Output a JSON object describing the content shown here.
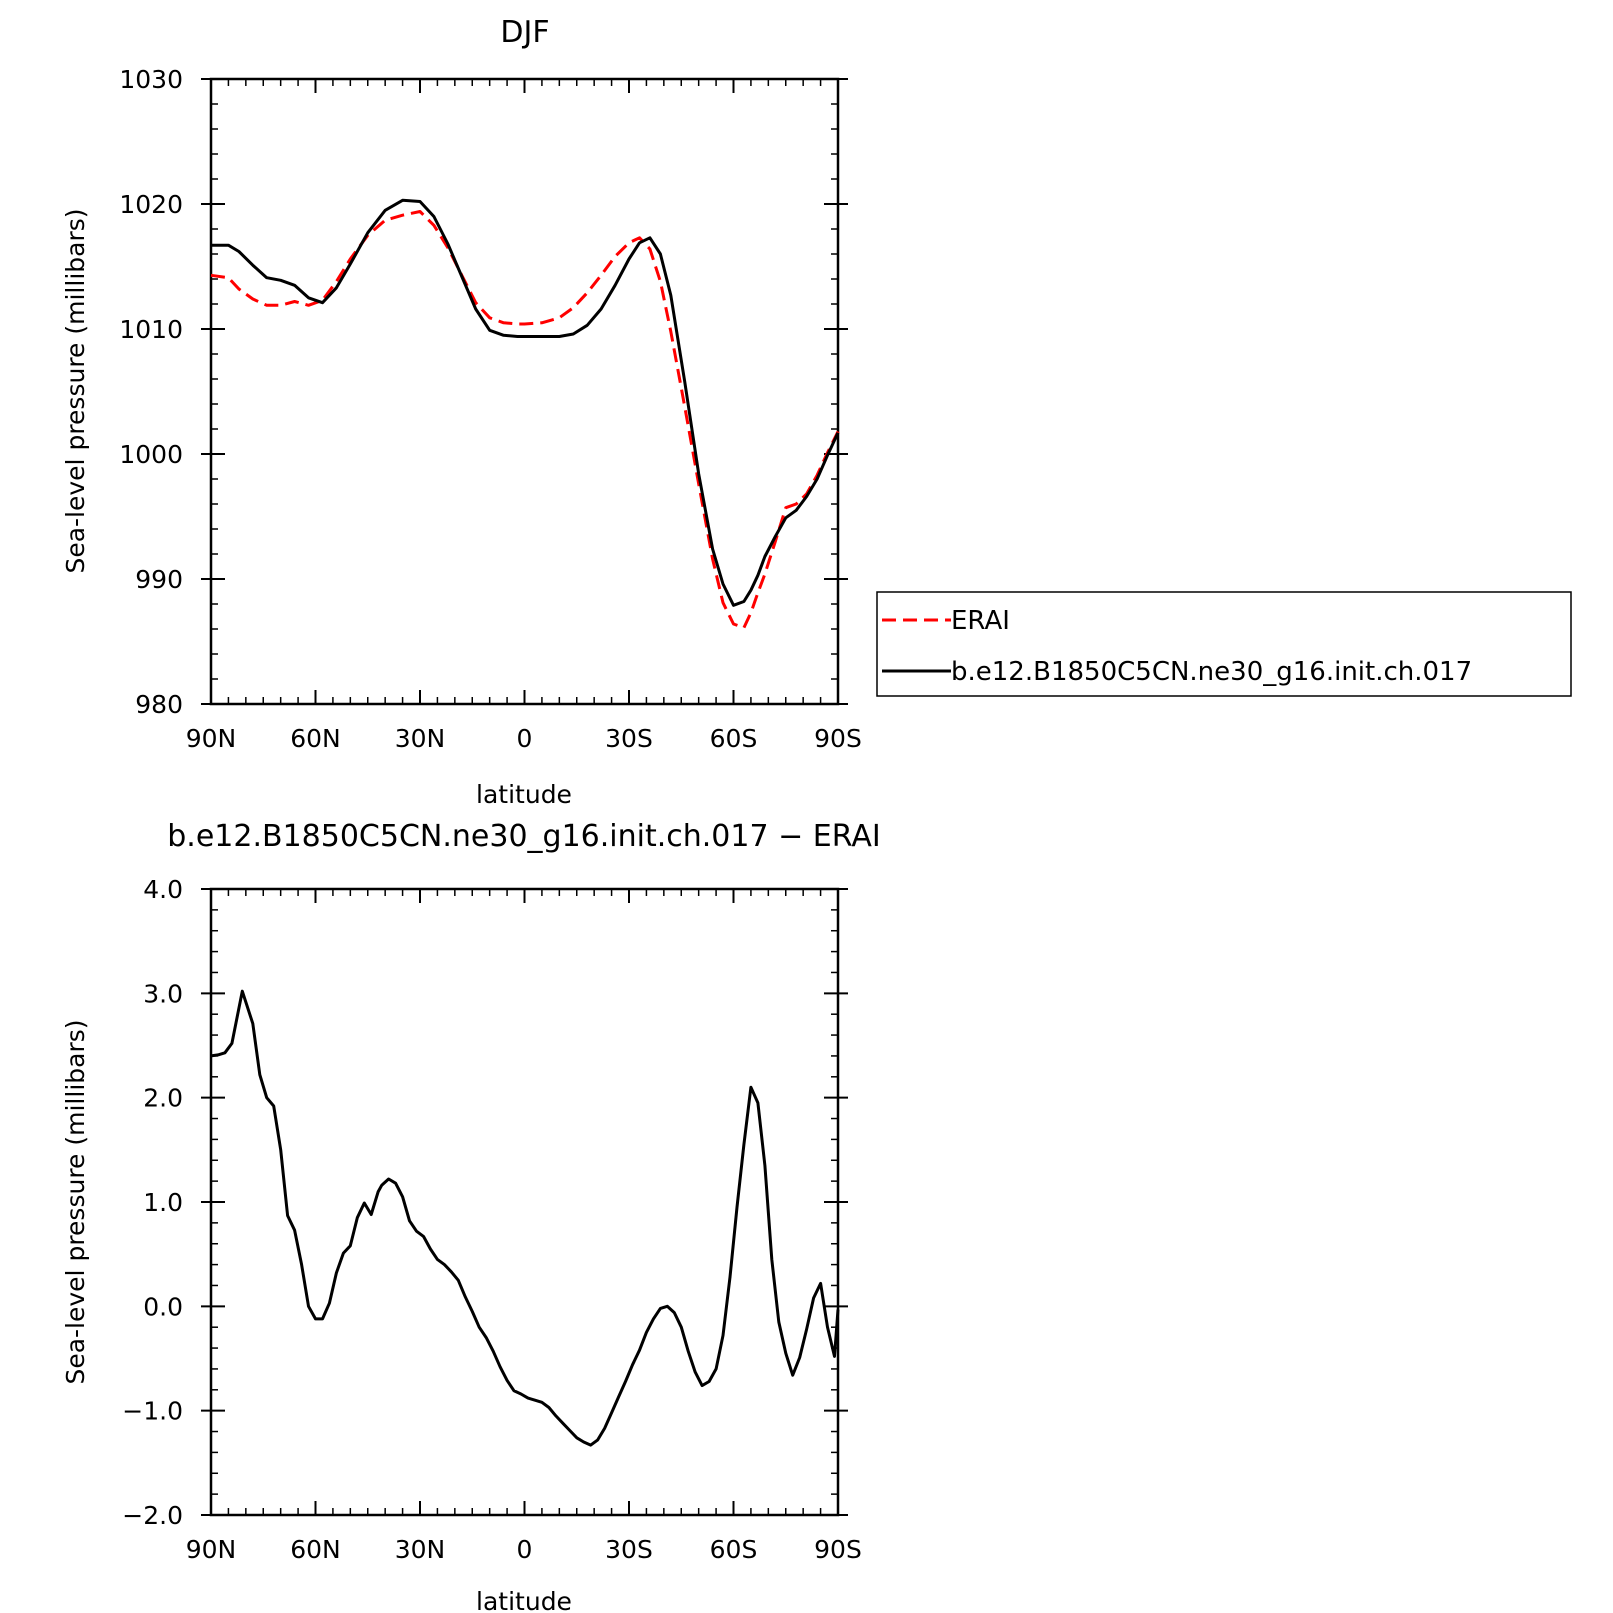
{
  "chart_data": [
    {
      "type": "line",
      "title": "DJF",
      "xlabel": "latitude",
      "ylabel": "Sea-level pressure (millibars)",
      "xlim": [
        90,
        -90
      ],
      "ylim": [
        980,
        1030
      ],
      "xticks": [
        90,
        60,
        30,
        0,
        -30,
        -60,
        -90
      ],
      "xtick_labels": [
        "90N",
        "60N",
        "30N",
        "0",
        "30S",
        "60S",
        "90S"
      ],
      "yticks": [
        980,
        990,
        1000,
        1010,
        1020,
        1030
      ],
      "ytick_labels": [
        "980",
        "990",
        "1000",
        "1010",
        "1020",
        "1030"
      ],
      "legend_position": "right",
      "series": [
        {
          "name": "ERAI",
          "color": "#ff0000",
          "style": "dashed",
          "x": [
            90,
            85,
            82,
            78,
            74,
            70,
            66,
            62,
            58,
            54,
            50,
            45,
            40,
            35,
            30,
            26,
            22,
            18,
            14,
            10,
            6,
            2,
            0,
            -5,
            -10,
            -14,
            -18,
            -22,
            -26,
            -30,
            -33,
            -36,
            -39,
            -42,
            -46,
            -50,
            -54,
            -57,
            -60,
            -63,
            -65,
            -67,
            -69,
            -72,
            -75,
            -78,
            -81,
            -84,
            -87,
            -90
          ],
          "y": [
            1014.3,
            1014.1,
            1013.2,
            1012.4,
            1011.9,
            1011.9,
            1012.2,
            1011.9,
            1012.3,
            1013.8,
            1015.6,
            1017.5,
            1018.7,
            1019.1,
            1019.4,
            1018.3,
            1016.5,
            1014.3,
            1012.1,
            1010.9,
            1010.5,
            1010.4,
            1010.4,
            1010.5,
            1010.9,
            1011.7,
            1012.9,
            1014.3,
            1015.8,
            1016.9,
            1017.3,
            1016.4,
            1013.8,
            1009.8,
            1003.8,
            997.6,
            991.6,
            988.1,
            986.4,
            986.1,
            987.3,
            988.9,
            990.4,
            993.0,
            995.7,
            996.0,
            996.8,
            998.3,
            1000.1,
            1001.8
          ]
        },
        {
          "name": "b.e12.B1850C5CN.ne30_g16.init.ch.017",
          "color": "#000000",
          "style": "solid",
          "x": [
            90,
            85,
            82,
            78,
            74,
            70,
            66,
            62,
            58,
            54,
            50,
            45,
            40,
            35,
            30,
            26,
            22,
            18,
            14,
            10,
            6,
            2,
            0,
            -5,
            -10,
            -14,
            -18,
            -22,
            -26,
            -30,
            -33,
            -36,
            -39,
            -42,
            -46,
            -50,
            -54,
            -57,
            -60,
            -63,
            -65,
            -67,
            -69,
            -72,
            -75,
            -78,
            -81,
            -84,
            -87,
            -90
          ],
          "y": [
            1016.7,
            1016.7,
            1016.2,
            1015.1,
            1014.1,
            1013.9,
            1013.5,
            1012.5,
            1012.1,
            1013.3,
            1015.2,
            1017.7,
            1019.5,
            1020.3,
            1020.2,
            1019.0,
            1016.8,
            1014.2,
            1011.6,
            1009.9,
            1009.5,
            1009.4,
            1009.4,
            1009.4,
            1009.4,
            1009.6,
            1010.3,
            1011.6,
            1013.5,
            1015.6,
            1016.9,
            1017.3,
            1016.0,
            1012.7,
            1005.8,
            998.4,
            992.4,
            989.6,
            987.9,
            988.2,
            989.1,
            990.3,
            991.8,
            993.4,
            994.9,
            995.5,
            996.6,
            998.0,
            999.9,
            1001.7
          ]
        }
      ]
    },
    {
      "type": "line",
      "title": "b.e12.B1850C5CN.ne30_g16.init.ch.017 − ERAI",
      "xlabel": "latitude",
      "ylabel": "Sea-level pressure (millibars)",
      "xlim": [
        90,
        -90
      ],
      "ylim": [
        -2.0,
        4.0
      ],
      "xticks": [
        90,
        60,
        30,
        0,
        -30,
        -60,
        -90
      ],
      "xtick_labels": [
        "90N",
        "60N",
        "30N",
        "0",
        "30S",
        "60S",
        "90S"
      ],
      "yticks": [
        -2.0,
        -1.0,
        0.0,
        1.0,
        2.0,
        3.0,
        4.0
      ],
      "ytick_labels": [
        "−2.0",
        "−1.0",
        "0.0",
        "1.0",
        "2.0",
        "3.0",
        "4.0"
      ],
      "series": [
        {
          "color": "#000000",
          "style": "solid",
          "x": [
            90,
            88,
            86,
            84,
            81,
            78,
            76,
            74,
            72,
            70,
            68,
            66,
            64,
            62,
            60,
            58,
            56,
            54,
            52,
            50,
            48,
            46,
            44,
            42,
            41,
            39,
            37,
            35,
            33,
            31,
            29,
            27,
            25,
            23,
            21,
            19,
            17,
            15,
            13,
            11,
            9,
            7,
            5,
            3,
            1,
            -1,
            -3,
            -5,
            -7,
            -9,
            -11,
            -13,
            -15,
            -17,
            -19,
            -21,
            -23,
            -25,
            -27,
            -29,
            -31,
            -33,
            -35,
            -37,
            -39,
            -41,
            -43,
            -45,
            -47,
            -49,
            -51,
            -53,
            -55,
            -57,
            -59,
            -61,
            -63,
            -65,
            -67,
            -69,
            -71,
            -73,
            -75,
            -77,
            -79,
            -81,
            -83,
            -85,
            -87,
            -89,
            -90
          ],
          "y": [
            2.4,
            2.41,
            2.43,
            2.52,
            3.02,
            2.71,
            2.22,
            2.0,
            1.92,
            1.5,
            0.87,
            0.73,
            0.4,
            0.0,
            -0.12,
            -0.12,
            0.03,
            0.32,
            0.51,
            0.58,
            0.85,
            0.99,
            0.88,
            1.1,
            1.16,
            1.22,
            1.18,
            1.05,
            0.82,
            0.72,
            0.67,
            0.55,
            0.45,
            0.4,
            0.33,
            0.25,
            0.09,
            -0.05,
            -0.2,
            -0.3,
            -0.43,
            -0.58,
            -0.71,
            -0.81,
            -0.84,
            -0.88,
            -0.9,
            -0.92,
            -0.97,
            -1.05,
            -1.12,
            -1.19,
            -1.26,
            -1.3,
            -1.33,
            -1.28,
            -1.17,
            -1.02,
            -0.87,
            -0.72,
            -0.56,
            -0.42,
            -0.25,
            -0.12,
            -0.02,
            0.0,
            -0.06,
            -0.2,
            -0.43,
            -0.63,
            -0.76,
            -0.72,
            -0.6,
            -0.28,
            0.28,
            0.95,
            1.55,
            2.1,
            1.95,
            1.35,
            0.45,
            -0.15,
            -0.45,
            -0.66,
            -0.49,
            -0.22,
            0.08,
            0.22,
            -0.2,
            -0.48,
            -0.03
          ]
        }
      ]
    }
  ]
}
